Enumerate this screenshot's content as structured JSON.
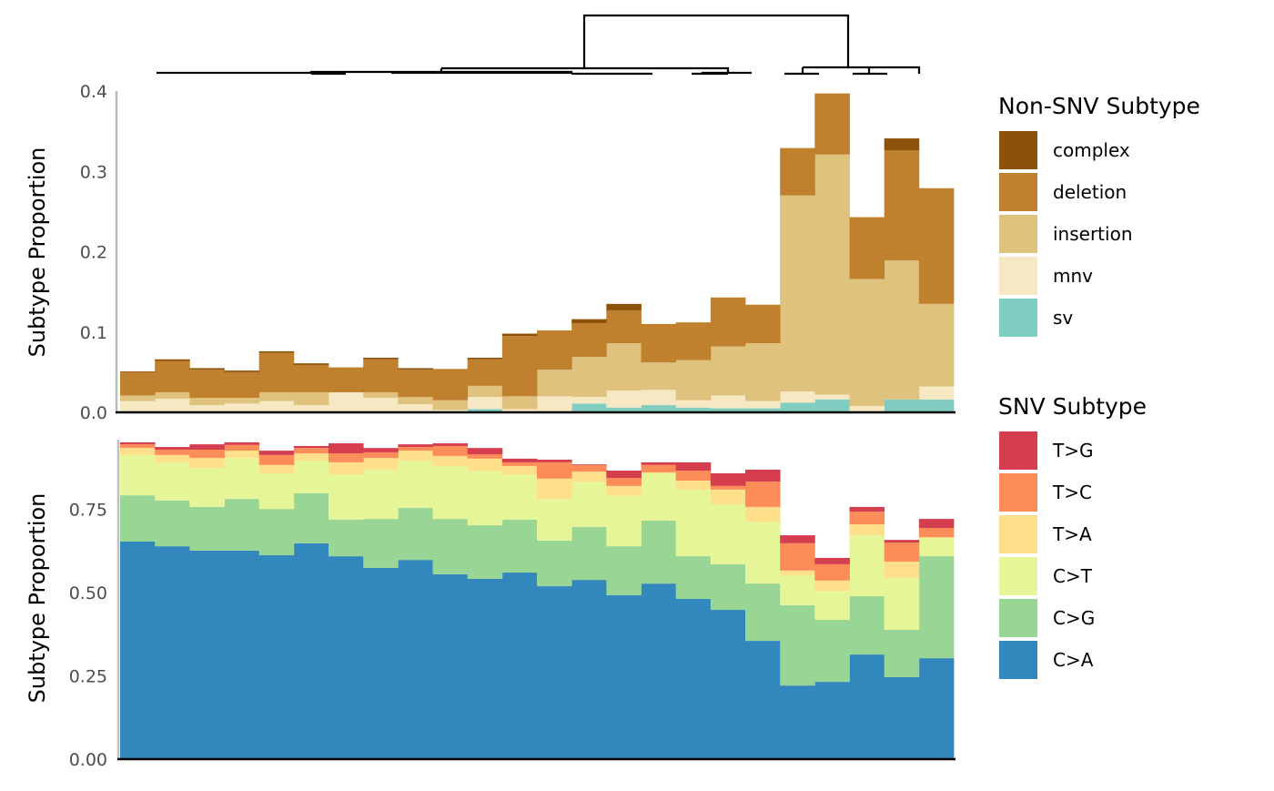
{
  "chart_data": [
    {
      "type": "bar",
      "stacked": true,
      "panel": "top",
      "ylabel": "Subtype Proportion",
      "ylim": [
        0,
        0.4
      ],
      "yticks": [
        "0.0",
        "0.1",
        "0.2",
        "0.3",
        "0.4"
      ],
      "ytick_values": [
        0,
        0.1,
        0.2,
        0.3,
        0.4
      ],
      "grid": false,
      "legend_title": "Non-SNV Subtype",
      "legend_placement": "right",
      "n_samples": 24,
      "series": [
        {
          "name": "sv",
          "color": "#80cdc1",
          "values": [
            0.001,
            0.001,
            0.001,
            0.001,
            0.001,
            0.001,
            0.001,
            0.001,
            0.001,
            0,
            0.004,
            0.001,
            0,
            0.011,
            0.006,
            0.009,
            0.006,
            0.005,
            0.005,
            0.012,
            0.016,
            0,
            0.016,
            0.016
          ]
        },
        {
          "name": "mnv",
          "color": "#f6e8c3",
          "values": [
            0.013,
            0.016,
            0.008,
            0.01,
            0.013,
            0.008,
            0.024,
            0.017,
            0.009,
            0.003,
            0.015,
            0.003,
            0.02,
            0.008,
            0.021,
            0.019,
            0.009,
            0.016,
            0.009,
            0.014,
            0.006,
            0.008,
            0,
            0.016
          ]
        },
        {
          "name": "insertion",
          "color": "#dfc27d",
          "values": [
            0.007,
            0.008,
            0.009,
            0.007,
            0.011,
            0.016,
            0,
            0.007,
            0.009,
            0.012,
            0.014,
            0.016,
            0.033,
            0.05,
            0.059,
            0.034,
            0.05,
            0.061,
            0.072,
            0.244,
            0.299,
            0.158,
            0.173,
            0.103
          ]
        },
        {
          "name": "deletion",
          "color": "#bf812d",
          "values": [
            0.029,
            0.039,
            0.035,
            0.032,
            0.049,
            0.034,
            0.031,
            0.041,
            0.034,
            0.039,
            0.033,
            0.075,
            0.049,
            0.042,
            0.041,
            0.048,
            0.047,
            0.061,
            0.048,
            0.059,
            0.076,
            0.077,
            0.137,
            0.144
          ]
        },
        {
          "name": "complex",
          "color": "#8c510a",
          "values": [
            0.001,
            0.002,
            0.002,
            0.002,
            0.002,
            0.002,
            0,
            0.002,
            0.002,
            0,
            0.002,
            0.003,
            0,
            0.005,
            0.008,
            0,
            0,
            0,
            0,
            0,
            0,
            0,
            0.015,
            0
          ]
        }
      ]
    },
    {
      "type": "bar",
      "stacked": true,
      "panel": "bottom",
      "ylabel": "Subtype Proportion",
      "ylim": [
        0,
        0.95
      ],
      "yticks": [
        "0.00",
        "0.25",
        "0.50",
        "0.75"
      ],
      "ytick_values": [
        0,
        0.25,
        0.5,
        0.75
      ],
      "grid": false,
      "legend_title": "SNV Subtype",
      "legend_placement": "right",
      "n_samples": 24,
      "series": [
        {
          "name": "C>A",
          "color": "#3288bd",
          "values": [
            0.653,
            0.639,
            0.626,
            0.626,
            0.612,
            0.648,
            0.609,
            0.574,
            0.598,
            0.555,
            0.541,
            0.56,
            0.519,
            0.538,
            0.492,
            0.527,
            0.481,
            0.448,
            0.355,
            0.221,
            0.232,
            0.314,
            0.246,
            0.303
          ]
        },
        {
          "name": "C>G",
          "color": "#99d594",
          "values": [
            0.139,
            0.137,
            0.131,
            0.155,
            0.139,
            0.15,
            0.11,
            0.147,
            0.156,
            0.166,
            0.161,
            0.159,
            0.137,
            0.159,
            0.147,
            0.189,
            0.128,
            0.137,
            0.172,
            0.241,
            0.186,
            0.175,
            0.142,
            0.306
          ]
        },
        {
          "name": "C>T",
          "color": "#e6f598",
          "values": [
            0.121,
            0.115,
            0.117,
            0.123,
            0.107,
            0.098,
            0.136,
            0.148,
            0.142,
            0.159,
            0.164,
            0.136,
            0.125,
            0.136,
            0.151,
            0.142,
            0.2,
            0.18,
            0.186,
            0.09,
            0.087,
            0.183,
            0.156,
            0.055
          ]
        },
        {
          "name": "T>A",
          "color": "#fee08b",
          "values": [
            0.021,
            0.022,
            0.03,
            0.022,
            0.025,
            0.022,
            0.036,
            0.035,
            0.03,
            0.03,
            0.036,
            0.025,
            0.061,
            0.03,
            0.03,
            0.003,
            0.027,
            0.044,
            0.044,
            0.014,
            0.031,
            0.033,
            0.049,
            0.002
          ]
        },
        {
          "name": "T>C",
          "color": "#fc8d59",
          "values": [
            0.011,
            0.016,
            0.025,
            0.017,
            0.03,
            0.016,
            0.027,
            0.017,
            0.011,
            0.03,
            0.013,
            0.011,
            0.049,
            0.02,
            0.024,
            0.022,
            0.03,
            0.011,
            0.076,
            0.082,
            0.049,
            0.038,
            0.057,
            0.028
          ]
        },
        {
          "name": "T>G",
          "color": "#d53e4f",
          "values": [
            0.006,
            0.008,
            0.016,
            0.008,
            0.013,
            0.006,
            0.03,
            0.013,
            0.008,
            0.008,
            0.019,
            0.011,
            0.008,
            0.002,
            0.022,
            0.008,
            0.025,
            0.038,
            0.036,
            0.024,
            0.019,
            0.014,
            0.008,
            0.027
          ]
        }
      ]
    }
  ],
  "dendrogram": {
    "present": true,
    "position": "top"
  }
}
